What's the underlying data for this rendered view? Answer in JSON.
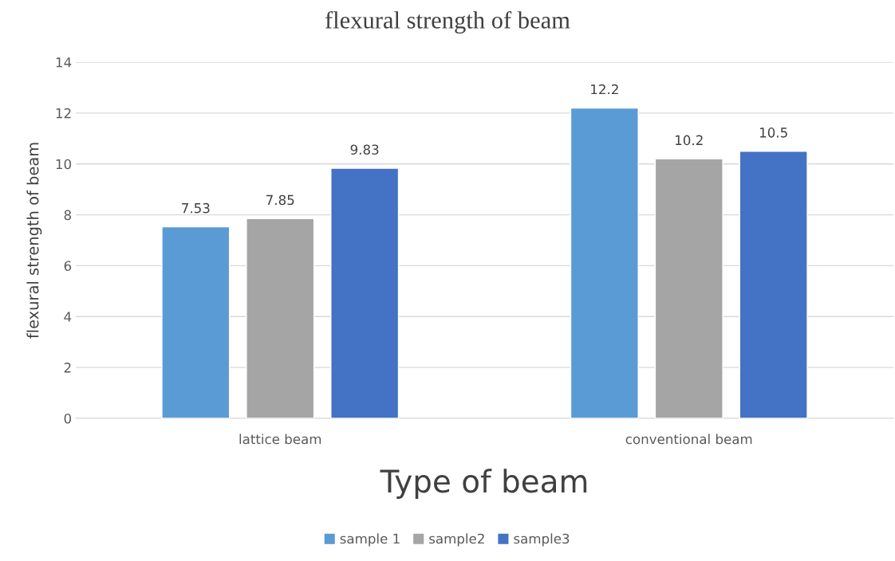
{
  "chart_data": {
    "type": "bar",
    "title": "flexural strength of beam",
    "xlabel": "Type of beam",
    "ylabel": "flexural strength of beam",
    "categories": [
      "lattice beam",
      "conventional beam"
    ],
    "series": [
      {
        "name": "sample 1",
        "color": "#5b9bd5",
        "values": [
          7.53,
          12.2
        ]
      },
      {
        "name": "sample2",
        "color": "#a5a5a5",
        "values": [
          7.85,
          10.2
        ]
      },
      {
        "name": "sample3",
        "color": "#4472c4",
        "values": [
          9.83,
          10.5
        ]
      }
    ],
    "ylim": [
      0,
      14
    ],
    "yticks": [
      0,
      2,
      4,
      6,
      8,
      10,
      12,
      14
    ],
    "grid": "y",
    "legend": "bottom",
    "data_labels": true
  }
}
